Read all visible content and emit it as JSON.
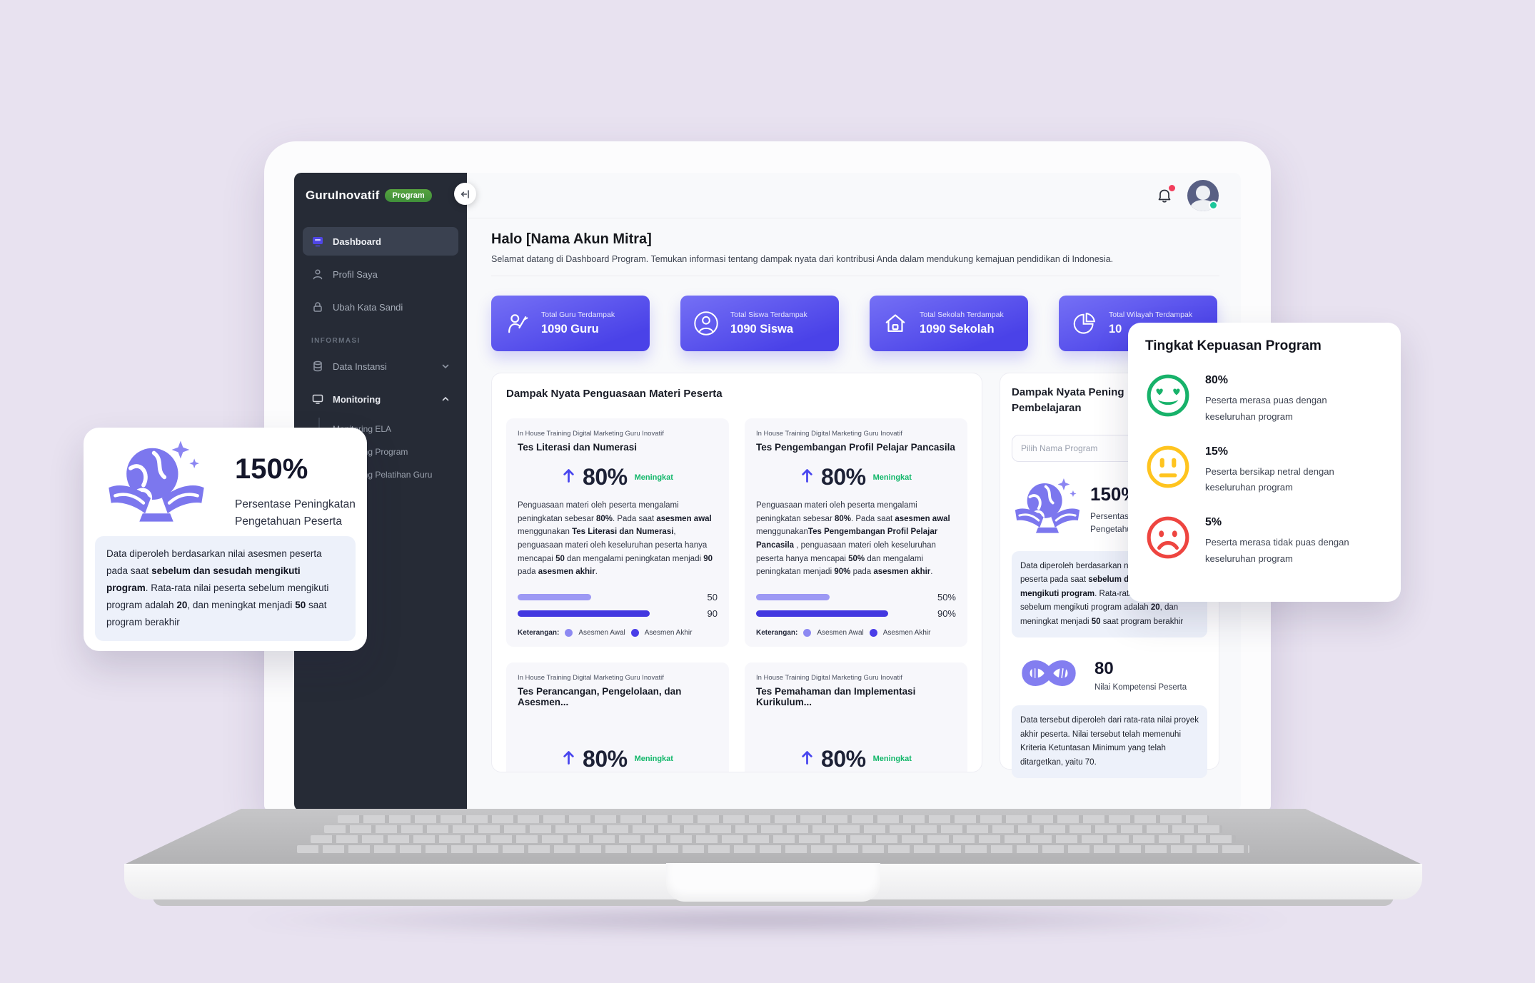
{
  "colors": {
    "background": "#e8e2f0",
    "sidebar_bg": "#262b36",
    "accent_indigo": "#4a42e8",
    "badge_green": "#479a3d",
    "success_green": "#12b76a",
    "warning_yellow": "#ffc41f",
    "danger_red": "#ef4444",
    "icon_purple": "#7c77ee",
    "bar_light": "#9d99f4",
    "bar_dark": "#4338e0"
  },
  "sidebar": {
    "logo": "GuruInovatif",
    "badge": "Program",
    "items": [
      {
        "label": "Dashboard"
      },
      {
        "label": "Profil Saya"
      },
      {
        "label": "Ubah Kata Sandi"
      }
    ],
    "section_label": "INFORMASI",
    "data_instansi_label": "Data Instansi",
    "monitoring_label": "Monitoring",
    "monitoring_children": [
      "Monitoring ELA",
      "Monitoring Program",
      "Monitoring Pelatihan Guru"
    ]
  },
  "header": {
    "title": "Halo [Nama Akun Mitra]",
    "subtitle": "Selamat datang di Dashboard Program. Temukan informasi tentang dampak nyata dari kontribusi Anda dalam mendukung kemajuan pendidikan di Indonesia."
  },
  "stats": [
    {
      "label": "Total Guru Terdampak",
      "value": "1090 Guru"
    },
    {
      "label": "Total Siswa Terdampak",
      "value": "1090 Siswa"
    },
    {
      "label": "Total Sekolah Terdampak",
      "value": "1090 Sekolah"
    },
    {
      "label": "Total Wilayah Terdampak",
      "value": "10"
    }
  ],
  "materi": {
    "title": "Dampak Nyata Penguasaan Materi Peserta",
    "increase_label": "Meningkat",
    "legend": {
      "label": "Keterangan:",
      "awal": "Asesmen Awal",
      "akhir": "Asesmen Akhir"
    },
    "cards": [
      {
        "eyebrow": "In House Training Digital Marketing Guru Inovatif",
        "title": "Tes Literasi dan Numerasi",
        "value": "80%",
        "para": [
          {
            "t": "Penguasaan materi oleh peserta mengalami peningkatan sebesar "
          },
          {
            "t": "80%",
            "b": true
          },
          {
            "t": ". Pada saat "
          },
          {
            "t": "asesmen awal",
            "b": true
          },
          {
            "t": " menggunakan "
          },
          {
            "t": "Tes Literasi dan Numerasi",
            "b": true
          },
          {
            "t": ", penguasaan materi oleh keseluruhan peserta hanya mencapai "
          },
          {
            "t": "50",
            "b": true
          },
          {
            "t": " dan mengalami peningkatan menjadi "
          },
          {
            "t": "90",
            "b": true
          },
          {
            "t": " pada "
          },
          {
            "t": "asesmen akhir",
            "b": true
          },
          {
            "t": "."
          }
        ],
        "bars": [
          {
            "label": "50"
          },
          {
            "label": "90"
          }
        ]
      },
      {
        "eyebrow": "In House Training Digital Marketing Guru Inovatif",
        "title": "Tes Pengembangan Profil Pelajar Pancasila",
        "value": "80%",
        "para": [
          {
            "t": "Penguasaan materi oleh peserta mengalami peningkatan sebesar "
          },
          {
            "t": "80%",
            "b": true
          },
          {
            "t": ". Pada saat "
          },
          {
            "t": "asesmen awal",
            "b": true
          },
          {
            "t": " menggunakan"
          },
          {
            "t": "Tes Pengembangan Profil Pelajar Pancasila",
            "b": true
          },
          {
            "t": " , penguasaan materi oleh keseluruhan peserta hanya mencapai "
          },
          {
            "t": "50%",
            "b": true
          },
          {
            "t": " dan mengalami peningkatan menjadi "
          },
          {
            "t": "90%",
            "b": true
          },
          {
            "t": " pada "
          },
          {
            "t": "asesmen akhir",
            "b": true
          },
          {
            "t": "."
          }
        ],
        "bars": [
          {
            "label": "50%"
          },
          {
            "label": "90%"
          }
        ]
      },
      {
        "eyebrow": "In House Training Digital Marketing Guru Inovatif",
        "title": "Tes Perancangan, Pengelolaan, dan Asesmen...",
        "value": "80%"
      },
      {
        "eyebrow": "In House Training Digital Marketing Guru Inovatif",
        "title": "Tes Pemahaman dan Implementasi Kurikulum...",
        "value": "80%"
      }
    ]
  },
  "right_card": {
    "title_line1": "Dampak Nyata Pening",
    "title_line2": "Pembelajaran",
    "select_placeholder": "Pilih Nama Program",
    "improvement": {
      "value": "150%",
      "label_line1": "Persentase Peningkatan",
      "label_line2": "Pengetahuan Peserta"
    },
    "note_segments": [
      {
        "t": "Data diperoleh berdasarkan nilai asesmen peserta pada saat "
      },
      {
        "t": "sebelum dan sesudah mengikuti program",
        "b": true
      },
      {
        "t": ". Rata-rata nilai peserta sebelum mengikuti program adalah "
      },
      {
        "t": "20",
        "b": true
      },
      {
        "t": ", dan meningkat menjadi "
      },
      {
        "t": "50",
        "b": true
      },
      {
        "t": " saat program berakhir"
      }
    ],
    "kompetensi": {
      "value": "80",
      "label": "Nilai Kompetensi Peserta",
      "note": "Data tersebut diperoleh dari rata-rata nilai proyek akhir peserta. Nilai tersebut telah memenuhi Kriteria Ketuntasan Minimum yang telah ditargetkan, yaitu 70."
    }
  },
  "overlay_left": {
    "value": "150%",
    "label_line1": "Persentase Peningkatan",
    "label_line2": "Pengetahuan Peserta",
    "note_segments": [
      {
        "t": "Data diperoleh berdasarkan nilai asesmen peserta pada saat "
      },
      {
        "t": "sebelum dan sesudah mengikuti program",
        "b": true
      },
      {
        "t": ". Rata-rata nilai peserta sebelum mengikuti program adalah "
      },
      {
        "t": "20",
        "b": true
      },
      {
        "t": ", dan meningkat menjadi "
      },
      {
        "t": "50",
        "b": true
      },
      {
        "t": " saat program berakhir"
      }
    ]
  },
  "overlay_right": {
    "title": "Tingkat Kepuasan Program",
    "items": [
      {
        "value": "80%",
        "desc": "Peserta merasa puas dengan keseluruhan program"
      },
      {
        "value": "15%",
        "desc": "Peserta bersikap netral dengan keseluruhan program"
      },
      {
        "value": "5%",
        "desc": "Peserta merasa tidak puas dengan keseluruhan program"
      }
    ]
  }
}
